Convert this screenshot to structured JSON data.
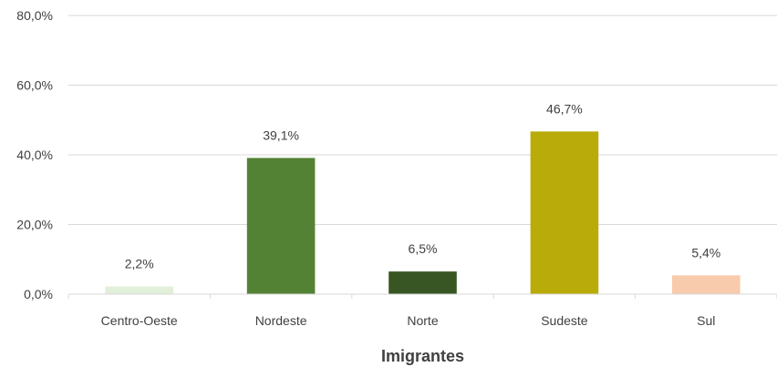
{
  "chart_data": {
    "type": "bar",
    "title": "",
    "xlabel": "Imigrantes",
    "ylabel": "",
    "categories": [
      "Centro-Oeste",
      "Nordeste",
      "Norte",
      "Sudeste",
      "Sul"
    ],
    "values": [
      2.2,
      39.1,
      6.5,
      46.7,
      5.4
    ],
    "value_labels": [
      "2,2%",
      "39,1%",
      "6,5%",
      "46,7%",
      "5,4%"
    ],
    "bar_colors": [
      "#e2efd9",
      "#548235",
      "#375623",
      "#b9ab0a",
      "#f8cbad"
    ],
    "ylim": [
      0,
      80
    ],
    "yticks": [
      0,
      20,
      40,
      60,
      80
    ],
    "ytick_labels": [
      "0,0%",
      "20,0%",
      "40,0%",
      "60,0%",
      "80,0%"
    ],
    "grid": true,
    "legend": "none"
  }
}
